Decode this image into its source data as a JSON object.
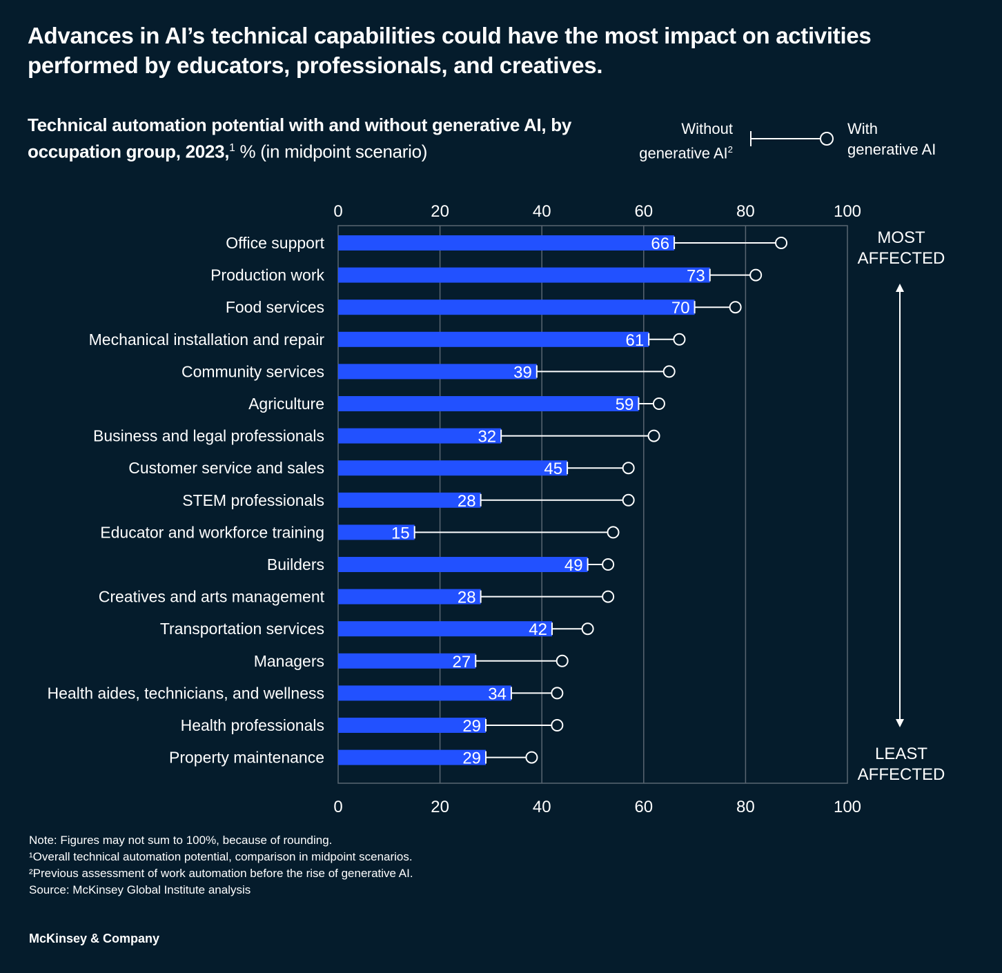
{
  "title": "Advances in AI’s technical capabilities could have the most impact on activities performed by educators, professionals, and creatives.",
  "subtitle": {
    "bold": "Technical automation potential with and without generative AI, by occupation group, 2023,",
    "sup": "1",
    "rest": " % (in midpoint scenario)"
  },
  "legend": {
    "without_line1": "Without",
    "without_line2": "generative AI",
    "without_sup": "2",
    "with_line1": "With",
    "with_line2": "generative AI"
  },
  "side_labels": {
    "most_1": "MOST",
    "most_2": "AFFECTED",
    "least_1": "LEAST",
    "least_2": "AFFECTED"
  },
  "colors": {
    "background": "#051c2c",
    "bar": "#2251ff",
    "line": "#ffffff",
    "grid": "#5a6672"
  },
  "chart_data": {
    "type": "bar",
    "subtype": "horizontal dumbbell over bars",
    "xlim": [
      0,
      100
    ],
    "xticks": [
      0,
      20,
      40,
      60,
      80,
      100
    ],
    "grid": true,
    "legend_placement": "top-right",
    "categories": [
      "Office support",
      "Production work",
      "Food services",
      "Mechanical installation and repair",
      "Community services",
      "Agriculture",
      "Business and legal professionals",
      "Customer service and sales",
      "STEM professionals",
      "Educator and workforce training",
      "Builders",
      "Creatives and arts management",
      "Transportation services",
      "Managers",
      "Health aides, technicians, and wellness",
      "Health professionals",
      "Property maintenance"
    ],
    "series": [
      {
        "name": "Without generative AI",
        "values": [
          66,
          73,
          70,
          61,
          39,
          59,
          32,
          45,
          28,
          15,
          49,
          28,
          42,
          27,
          34,
          29,
          29
        ]
      },
      {
        "name": "With generative AI",
        "values": [
          87,
          82,
          78,
          67,
          65,
          63,
          62,
          57,
          57,
          54,
          53,
          53,
          49,
          44,
          43,
          43,
          38
        ]
      }
    ]
  },
  "notes": [
    "Note: Figures may not sum to 100%, because of rounding.",
    "¹Overall technical automation potential, comparison in midpoint scenarios.",
    "²Previous assessment of work automation before the rise of generative AI.",
    "Source: McKinsey Global Institute analysis"
  ],
  "brand": "McKinsey & Company"
}
